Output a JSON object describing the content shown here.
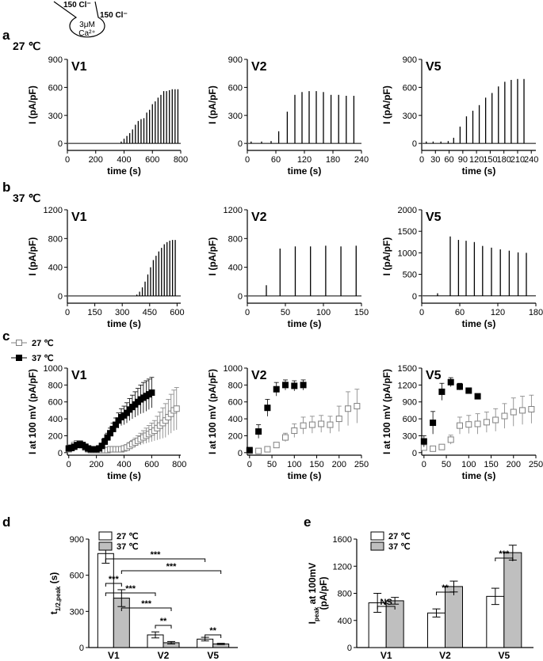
{
  "labels": {
    "panels": [
      "a",
      "b",
      "c",
      "d",
      "e"
    ],
    "cond_a": "27 ℃",
    "cond_b": "37 ℃",
    "pipette": [
      "150 Cl⁻",
      "150 Cl⁻",
      "3μM",
      "Ca²⁺"
    ]
  },
  "chart_data": [
    {
      "type": "spike",
      "title": "V1",
      "xlabel": "time (s)",
      "ylabel": "I (pA/pF)",
      "xlim": [
        0,
        800
      ],
      "ylim": [
        -75,
        900
      ],
      "xticks": [
        0,
        200,
        400,
        600,
        800
      ],
      "yticks": [
        0,
        300,
        600,
        900
      ],
      "color": "#000000",
      "x": [
        380,
        400,
        420,
        440,
        460,
        480,
        500,
        520,
        540,
        560,
        580,
        600,
        620,
        640,
        660,
        680,
        700,
        720,
        740,
        760,
        780
      ],
      "values": [
        20,
        50,
        80,
        110,
        150,
        200,
        240,
        260,
        270,
        330,
        360,
        420,
        450,
        490,
        520,
        560,
        560,
        570,
        580,
        580,
        580
      ]
    },
    {
      "type": "spike",
      "title": "V2",
      "xlabel": "time (s)",
      "ylabel": "I (pA/pF)",
      "xlim": [
        0,
        240
      ],
      "ylim": [
        -75,
        900
      ],
      "xticks": [
        0,
        60,
        120,
        180,
        240
      ],
      "yticks": [
        0,
        300,
        600,
        900
      ],
      "color": "#000000",
      "x": [
        8,
        30,
        50,
        66,
        84,
        100,
        115,
        130,
        145,
        160,
        176,
        192,
        208,
        224
      ],
      "values": [
        20,
        20,
        25,
        130,
        340,
        520,
        550,
        560,
        560,
        550,
        520,
        520,
        510,
        510
      ]
    },
    {
      "type": "spike",
      "title": "V5",
      "xlabel": "time (s)",
      "ylabel": "I (pA/pF)",
      "xlim": [
        0,
        250
      ],
      "ylim": [
        -75,
        900
      ],
      "xticks": [
        0,
        30,
        60,
        90,
        120,
        150,
        180,
        210,
        240
      ],
      "yticks": [
        0,
        300,
        600,
        900
      ],
      "color": "#000000",
      "x": [
        10,
        25,
        42,
        58,
        70,
        84,
        98,
        112,
        126,
        140,
        154,
        168,
        182,
        196,
        210,
        224
      ],
      "values": [
        20,
        20,
        20,
        25,
        60,
        180,
        290,
        350,
        410,
        490,
        540,
        610,
        660,
        680,
        690,
        690
      ]
    },
    {
      "type": "spike",
      "title": "V1",
      "xlabel": "time (s)",
      "ylabel": "I (pA/pF)",
      "xlim": [
        0,
        620
      ],
      "ylim": [
        -100,
        1200
      ],
      "xticks": [
        0,
        150,
        300,
        450,
        600
      ],
      "yticks": [
        0,
        400,
        800,
        1200
      ],
      "color": "#000000",
      "x": [
        380,
        395,
        410,
        425,
        440,
        455,
        470,
        485,
        500,
        515,
        530,
        545,
        560,
        575,
        590
      ],
      "values": [
        20,
        60,
        120,
        200,
        300,
        400,
        500,
        560,
        620,
        670,
        720,
        750,
        770,
        780,
        780
      ]
    },
    {
      "type": "spike",
      "title": "V2",
      "xlabel": "time (s)",
      "ylabel": "I (pA/pF)",
      "xlim": [
        0,
        150
      ],
      "ylim": [
        -100,
        1200
      ],
      "xticks": [
        0,
        50,
        100,
        150
      ],
      "yticks": [
        0,
        400,
        800,
        1200
      ],
      "color": "#000000",
      "x": [
        25,
        43,
        63,
        83,
        103,
        123,
        143
      ],
      "values": [
        150,
        660,
        690,
        690,
        700,
        690,
        700
      ]
    },
    {
      "type": "spike",
      "title": "V5",
      "xlabel": "time (s)",
      "ylabel": "I (pA/pF)",
      "xlim": [
        0,
        180
      ],
      "ylim": [
        -170,
        2000
      ],
      "xticks": [
        0,
        60,
        120,
        180
      ],
      "yticks": [
        0,
        500,
        1000,
        1500,
        2000
      ],
      "color": "#000000",
      "x": [
        25,
        45,
        58,
        70,
        83,
        96,
        110,
        124,
        138,
        152,
        165
      ],
      "values": [
        60,
        1380,
        1300,
        1280,
        1250,
        1160,
        1120,
        1080,
        1050,
        1010,
        1000
      ]
    },
    {
      "type": "scatter",
      "title": "V1",
      "xlabel": "time (s)",
      "ylabel": "I at 100 mV (pA/pF)",
      "xlim": [
        -10,
        810
      ],
      "ylim": [
        -30,
        1000
      ],
      "xticks": [
        0,
        200,
        400,
        600,
        800
      ],
      "yticks": [
        0,
        200,
        400,
        600,
        800,
        1000
      ],
      "legend": true,
      "series": [
        {
          "name": "27 ℃",
          "color": "#808080",
          "marker": "open",
          "x": [
            0,
            20,
            40,
            60,
            80,
            100,
            120,
            140,
            160,
            180,
            200,
            220,
            240,
            260,
            280,
            300,
            320,
            340,
            360,
            380,
            400,
            420,
            440,
            460,
            480,
            500,
            520,
            540,
            560,
            580,
            600,
            620,
            640,
            660,
            680,
            700,
            720,
            740,
            760,
            780
          ],
          "values": [
            40,
            60,
            90,
            110,
            110,
            90,
            60,
            40,
            30,
            30,
            30,
            30,
            30,
            30,
            30,
            40,
            40,
            40,
            40,
            40,
            50,
            60,
            80,
            100,
            120,
            140,
            160,
            180,
            200,
            220,
            240,
            260,
            290,
            320,
            350,
            380,
            420,
            460,
            500,
            520
          ],
          "errors": [
            20,
            25,
            30,
            30,
            30,
            30,
            25,
            20,
            20,
            20,
            20,
            20,
            20,
            20,
            20,
            20,
            20,
            20,
            20,
            25,
            30,
            35,
            40,
            45,
            50,
            60,
            70,
            80,
            90,
            100,
            110,
            120,
            140,
            160,
            180,
            200,
            210,
            230,
            240,
            250
          ]
        },
        {
          "name": "37 ℃",
          "color": "#000000",
          "marker": "filled",
          "x": [
            0,
            20,
            40,
            60,
            80,
            100,
            120,
            140,
            160,
            180,
            200,
            220,
            240,
            260,
            280,
            300,
            320,
            340,
            360,
            380,
            400,
            420,
            440,
            460,
            480,
            500,
            520,
            540,
            560,
            580,
            600
          ],
          "values": [
            50,
            55,
            70,
            90,
            100,
            90,
            70,
            50,
            40,
            40,
            40,
            50,
            80,
            130,
            180,
            230,
            280,
            330,
            380,
            420,
            440,
            470,
            510,
            540,
            570,
            600,
            630,
            650,
            670,
            690,
            710
          ],
          "errors": [
            20,
            20,
            25,
            30,
            30,
            30,
            25,
            20,
            20,
            20,
            20,
            25,
            30,
            40,
            50,
            60,
            70,
            80,
            90,
            100,
            110,
            120,
            130,
            140,
            150,
            160,
            170,
            180,
            180,
            180,
            180
          ]
        }
      ]
    },
    {
      "type": "scatter",
      "title": "V2",
      "xlabel": "time (s)",
      "ylabel": "I at 100 mV (pA/pF)",
      "xlim": [
        -5,
        250
      ],
      "ylim": [
        -30,
        1000
      ],
      "xticks": [
        0,
        50,
        100,
        150,
        200,
        250
      ],
      "yticks": [
        0,
        200,
        400,
        600,
        800,
        1000
      ],
      "series": [
        {
          "color": "#808080",
          "marker": "open",
          "x": [
            0,
            20,
            40,
            60,
            80,
            100,
            120,
            140,
            160,
            180,
            200,
            220,
            240
          ],
          "values": [
            20,
            20,
            40,
            90,
            180,
            260,
            320,
            330,
            340,
            330,
            400,
            520,
            550
          ],
          "errors": [
            10,
            10,
            20,
            30,
            50,
            80,
            100,
            100,
            100,
            100,
            150,
            200,
            200
          ]
        },
        {
          "color": "#000000",
          "marker": "filled",
          "x": [
            0,
            20,
            40,
            60,
            80,
            100,
            120
          ],
          "values": [
            30,
            250,
            530,
            750,
            800,
            790,
            800
          ],
          "errors": [
            20,
            80,
            100,
            80,
            60,
            60,
            60
          ]
        }
      ]
    },
    {
      "type": "scatter",
      "title": "V5",
      "xlabel": "time (s)",
      "ylabel": "I at 100 mV (pA/pF)",
      "xlim": [
        -5,
        250
      ],
      "ylim": [
        -45,
        1500
      ],
      "xticks": [
        0,
        50,
        100,
        150,
        200,
        250
      ],
      "yticks": [
        0,
        300,
        600,
        900,
        1200,
        1500
      ],
      "series": [
        {
          "color": "#808080",
          "marker": "open",
          "x": [
            0,
            20,
            40,
            60,
            80,
            100,
            120,
            140,
            160,
            180,
            200,
            220,
            240
          ],
          "values": [
            90,
            70,
            100,
            230,
            480,
            500,
            510,
            540,
            580,
            650,
            720,
            750,
            770
          ],
          "errors": [
            40,
            30,
            40,
            80,
            150,
            160,
            180,
            180,
            200,
            220,
            250,
            250,
            250
          ]
        },
        {
          "color": "#000000",
          "marker": "filled",
          "x": [
            0,
            20,
            40,
            60,
            80,
            100,
            120
          ],
          "values": [
            200,
            530,
            1080,
            1250,
            1170,
            1100,
            1000
          ],
          "errors": [
            100,
            200,
            150,
            80,
            60,
            50,
            40
          ]
        }
      ]
    },
    {
      "type": "bar",
      "ylabel": {
        "main": "t",
        "sub": "1/2,peak",
        "rest": " (s)"
      },
      "categories": [
        "V1",
        "V2",
        "V5"
      ],
      "ylim": [
        0,
        900
      ],
      "yticks": [
        0,
        300,
        600,
        900
      ],
      "series": [
        {
          "name": "27 ℃",
          "color": "#ffffff",
          "values": [
            780,
            105,
            70
          ],
          "errors": [
            80,
            25,
            15
          ]
        },
        {
          "name": "37 ℃",
          "color": "#bfbfbf",
          "values": [
            410,
            40,
            30
          ],
          "errors": [
            70,
            10,
            5
          ]
        }
      ],
      "brackets": [
        "***",
        "***",
        "***",
        "***",
        "***",
        "**",
        "**"
      ]
    },
    {
      "type": "bar",
      "ylabel": {
        "main": "I",
        "sub": "peak",
        "rest": " at 100mV",
        "line2": "(pA/pF)"
      },
      "categories": [
        "V1",
        "V2",
        "V5"
      ],
      "ylim": [
        0,
        1600
      ],
      "yticks": [
        0,
        400,
        800,
        1200,
        1600
      ],
      "series": [
        {
          "name": "27 ℃",
          "color": "#ffffff",
          "values": [
            660,
            510,
            755
          ],
          "errors": [
            140,
            60,
            120
          ]
        },
        {
          "name": "37 ℃",
          "color": "#bfbfbf",
          "values": [
            690,
            900,
            1400
          ],
          "errors": [
            50,
            80,
            110
          ]
        }
      ],
      "brackets": [
        "NS",
        "**",
        "***"
      ]
    }
  ]
}
